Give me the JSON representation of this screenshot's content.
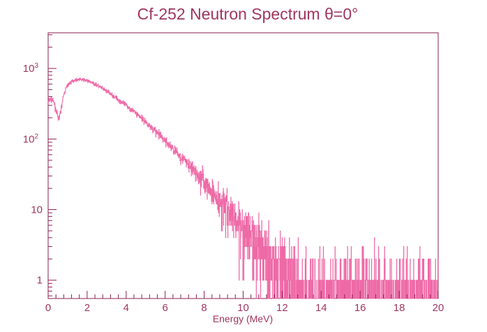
{
  "chart_data": {
    "type": "line",
    "title": "Cf-252 Neutron Spectrum θ=0°",
    "xlabel": "Energy (MeV)",
    "ylabel": "",
    "xlim": [
      0,
      20
    ],
    "ylim": [
      0.55,
      3200
    ],
    "yscale": "log",
    "grid": false,
    "legend": "none",
    "x_ticks": [
      0,
      2,
      4,
      6,
      8,
      10,
      12,
      14,
      16,
      18,
      20
    ],
    "x_tick_labels": [
      "0",
      "2",
      "4",
      "6",
      "8",
      "10",
      "12",
      "14",
      "16",
      "18",
      "20"
    ],
    "y_ticks": [
      1,
      10,
      100,
      1000
    ],
    "y_tick_labels": [
      {
        "base": "1",
        "exp": ""
      },
      {
        "base": "10",
        "exp": ""
      },
      {
        "base": "10",
        "exp": "2"
      },
      {
        "base": "10",
        "exp": "3"
      }
    ],
    "colors": {
      "frame": "#8b2252",
      "text": "#a0365e",
      "series": "#ee6aa7"
    },
    "series": [
      {
        "name": "",
        "x": [
          0.0,
          0.1,
          0.2,
          0.3,
          0.4,
          0.5,
          0.55,
          0.6,
          0.7,
          0.8,
          0.9,
          1.0,
          1.2,
          1.4,
          1.6,
          1.8,
          2.0,
          2.2,
          2.5,
          3.0,
          3.5,
          4.0,
          4.5,
          5.0,
          5.5,
          6.0,
          6.5,
          7.0,
          7.5,
          8.0,
          8.5,
          9.0,
          9.5,
          10.0,
          10.5,
          11.0,
          11.5,
          12.0,
          12.5,
          13.0,
          13.5,
          14.0,
          14.5,
          15.0,
          15.5,
          16.0,
          16.5,
          17.0,
          17.5,
          18.0,
          18.5,
          19.0,
          19.5,
          20.0
        ],
        "y": [
          330,
          370,
          360,
          330,
          260,
          200,
          190,
          215,
          300,
          420,
          510,
          580,
          650,
          690,
          700,
          690,
          670,
          640,
          580,
          480,
          380,
          300,
          235,
          175,
          130,
          95,
          68,
          50,
          35,
          24,
          17,
          12,
          8.5,
          6,
          4,
          2.8,
          2.0,
          1.5,
          1.2,
          1.0,
          1.0,
          1.0,
          1.0,
          1.0,
          1.0,
          1.0,
          1.0,
          1.0,
          1.0,
          1.0,
          1.0,
          1.0,
          1.0,
          1.0
        ]
      }
    ]
  }
}
